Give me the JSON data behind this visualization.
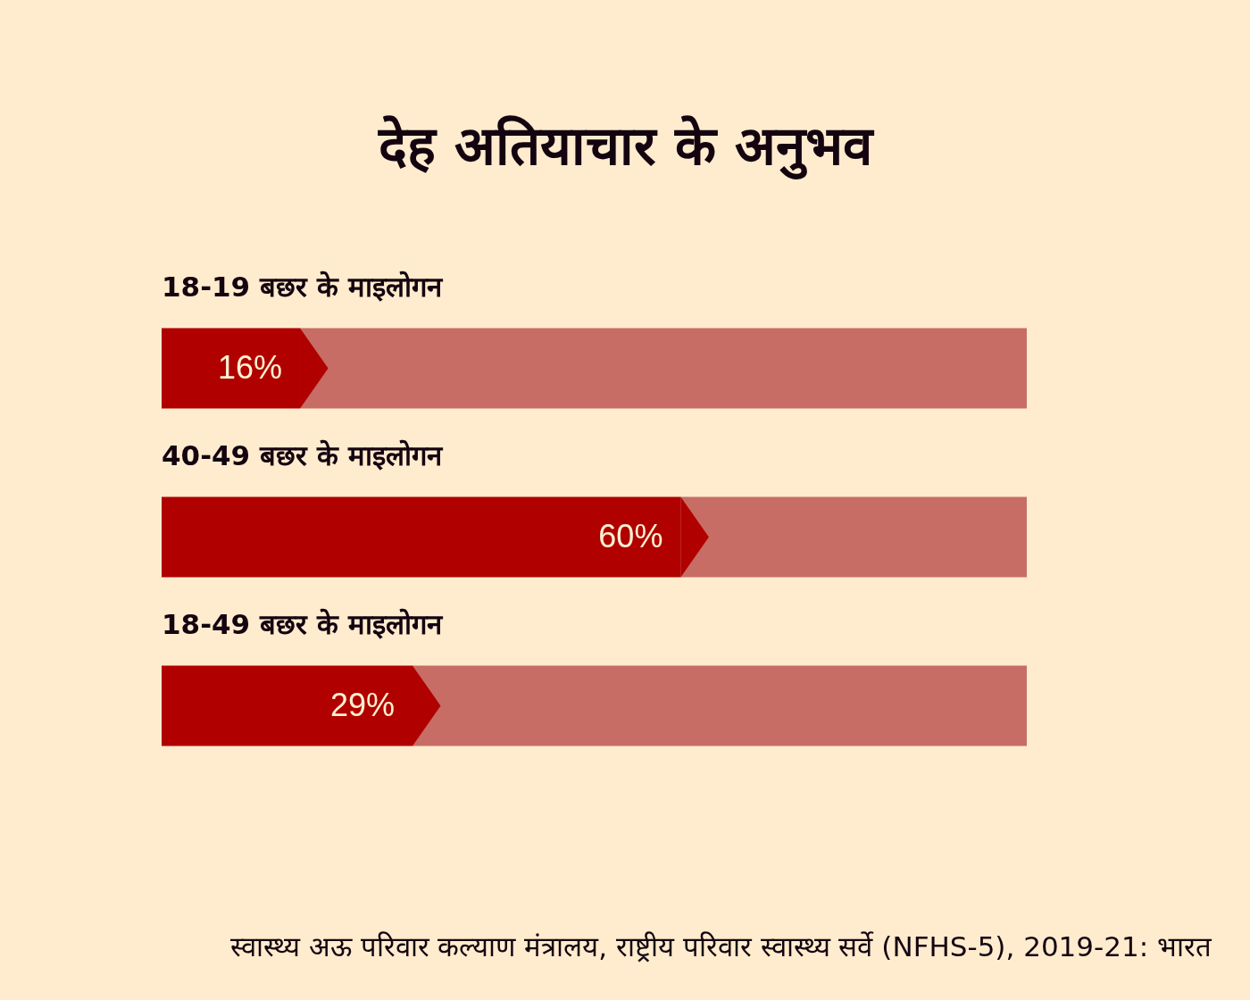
{
  "chart_data": {
    "type": "bar",
    "orientation": "horizontal",
    "stacked": true,
    "title": "देह अतियाचार के अनुभव",
    "categories": [
      "18-19 बछर के माइलोगन",
      "40-49 बछर के माइलोगन",
      "18-49 बछर के माइलोगन"
    ],
    "series": [
      {
        "color": "#b00000",
        "values": [
          16,
          60,
          29
        ],
        "value_labels": [
          "16%",
          "60%",
          "29%"
        ]
      },
      {
        "color": "#c76d65",
        "values": [
          84,
          40,
          71
        ]
      }
    ],
    "xlim": [
      0,
      100
    ],
    "tick_labels": "y",
    "annotations": [
      "स्वास्थ्य अऊ परिवार कल्याण मंत्रालय, राष्ट्रीय परिवार स्वास्थ्य सर्वे (NFHS-5), 2019-21: भारत"
    ]
  }
}
